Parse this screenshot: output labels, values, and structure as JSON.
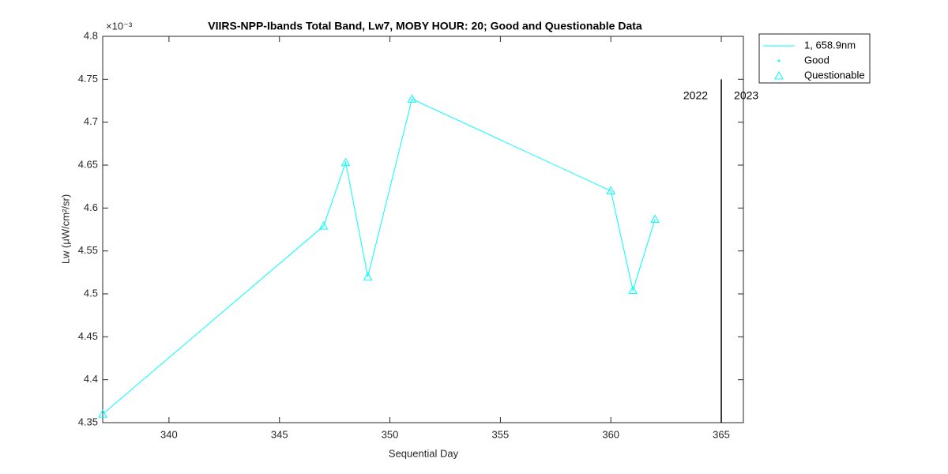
{
  "chart_data": {
    "type": "line",
    "title": "VIIRS-NPP-Ibands Total Band,  Lw7, MOBY HOUR: 20;  Good and Questionable Data",
    "x_label": "Sequential Day",
    "y_label": "Lw (μW/cm²/sr)",
    "y_multiplier": "×10⁻³",
    "x": [
      337,
      347,
      348,
      349,
      351,
      360,
      361,
      362
    ],
    "series": [
      {
        "name": "1, 658.9nm",
        "color": "#00ffff",
        "marker": "none",
        "values": [
          4.36,
          4.579,
          4.653,
          4.52,
          4.727,
          4.62,
          4.504,
          4.587
        ]
      },
      {
        "name": "Good",
        "color": "#00ffff",
        "marker": "dot",
        "values": [
          null,
          null,
          null,
          null,
          null,
          null,
          null,
          null
        ]
      },
      {
        "name": "Questionable",
        "color": "#00ffff",
        "marker": "triangle",
        "values": [
          4.36,
          4.579,
          4.653,
          4.52,
          4.727,
          4.62,
          4.504,
          4.587
        ]
      }
    ],
    "xlim": [
      337,
      366
    ],
    "ylim": [
      4.35,
      4.8
    ],
    "xticks": [
      340,
      345,
      350,
      355,
      360,
      365
    ],
    "yticks": [
      4.35,
      4.4,
      4.45,
      4.5,
      4.55,
      4.6,
      4.65,
      4.7,
      4.75,
      4.8
    ],
    "year_divider": {
      "x": 365,
      "y": [
        4.35,
        4.75
      ],
      "labels": [
        "2022",
        "2023"
      ]
    },
    "legend": "outside-top-right",
    "grid": false
  }
}
